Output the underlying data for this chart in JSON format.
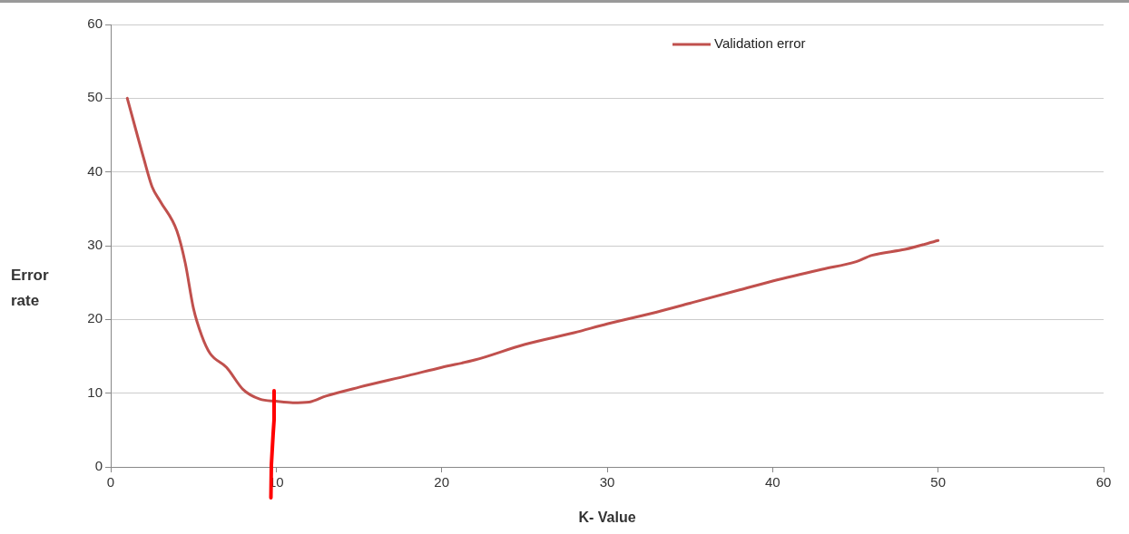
{
  "chart_data": {
    "type": "line",
    "xlabel": "K- Value",
    "ylabel": "Error rate",
    "x": [
      1,
      2,
      2.5,
      3,
      4,
      4.5,
      5,
      5.5,
      6,
      7,
      8,
      9,
      10,
      11,
      12,
      13,
      15,
      18,
      20,
      22,
      25,
      28,
      30,
      33,
      35,
      38,
      40,
      43,
      45,
      46,
      48,
      50
    ],
    "series": [
      {
        "name": "Validation error",
        "color": "#c0504d",
        "values": [
          50,
          41.8,
          38,
          36,
          32,
          27.7,
          21.5,
          17.8,
          15.4,
          13.5,
          10.5,
          9.2,
          8.9,
          8.7,
          8.8,
          9.6,
          10.8,
          12.4,
          13.5,
          14.5,
          16.6,
          18.2,
          19.4,
          21,
          22.2,
          24,
          25.2,
          26.8,
          27.8,
          28.7,
          29.5,
          30.7
        ]
      }
    ],
    "xlim": [
      0,
      60
    ],
    "xticks": [
      0,
      10,
      20,
      30,
      40,
      50,
      60
    ],
    "ylim": [
      0,
      60
    ],
    "yticks": [
      0,
      10,
      20,
      30,
      40,
      50,
      60
    ],
    "grid": "y",
    "legend": "top right",
    "marker": "none",
    "line_style": "solid"
  }
}
